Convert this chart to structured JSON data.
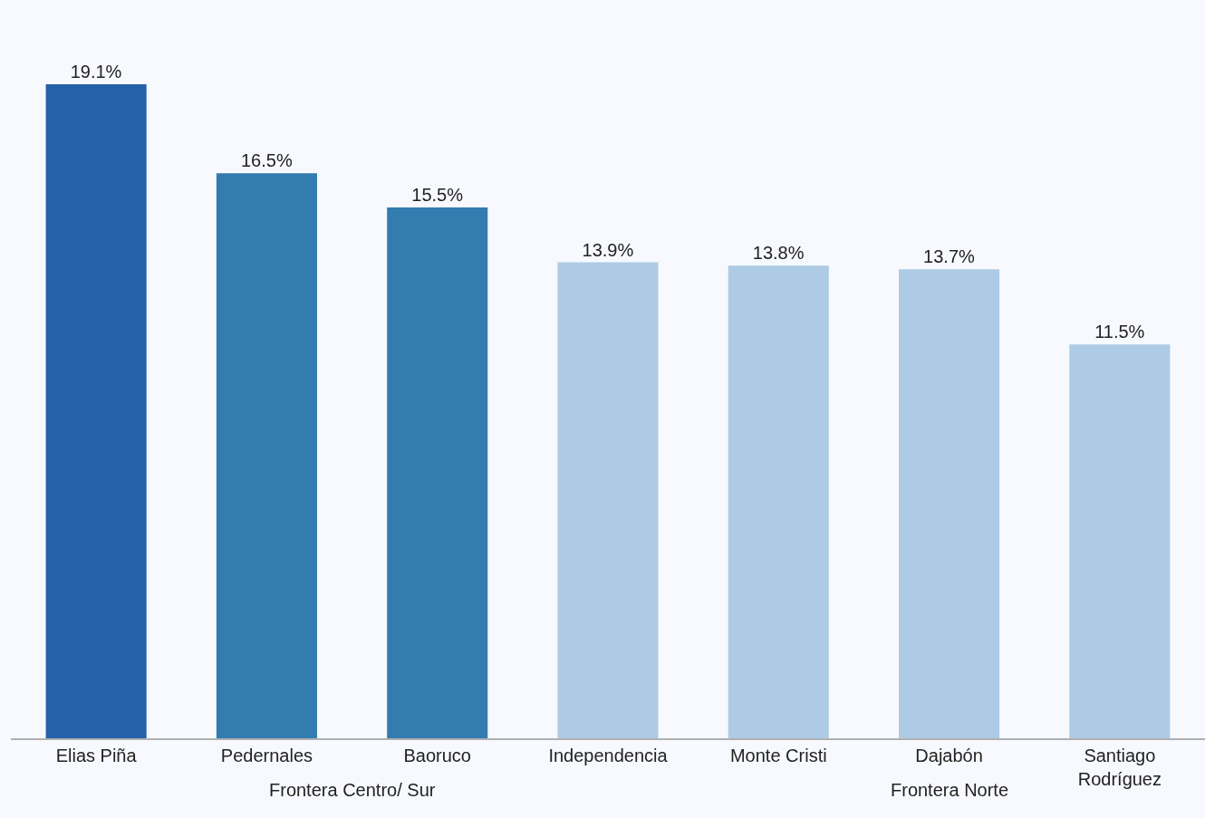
{
  "chart_data": {
    "type": "bar",
    "categories": [
      "Elias Piña",
      "Pedernales",
      "Baoruco",
      "Independencia",
      "Monte Cristi",
      "Dajabón",
      "Santiago Rodríguez"
    ],
    "values": [
      19.1,
      16.5,
      15.5,
      13.9,
      13.8,
      13.7,
      11.5
    ],
    "colors": [
      "#2560a8",
      "#337cb0",
      "#337cb0",
      "#aecbe6",
      "#aecbe6",
      "#aecbe6",
      "#aecbe6"
    ],
    "value_labels": [
      "19.1%",
      "16.5%",
      "15.5%",
      "13.9%",
      "13.8%",
      "13.7%",
      "11.5%"
    ],
    "annotations": [
      "Frontera Centro/ Sur",
      "Frontera Norte"
    ],
    "grid": false,
    "legend": false,
    "tick_labels": "x"
  }
}
